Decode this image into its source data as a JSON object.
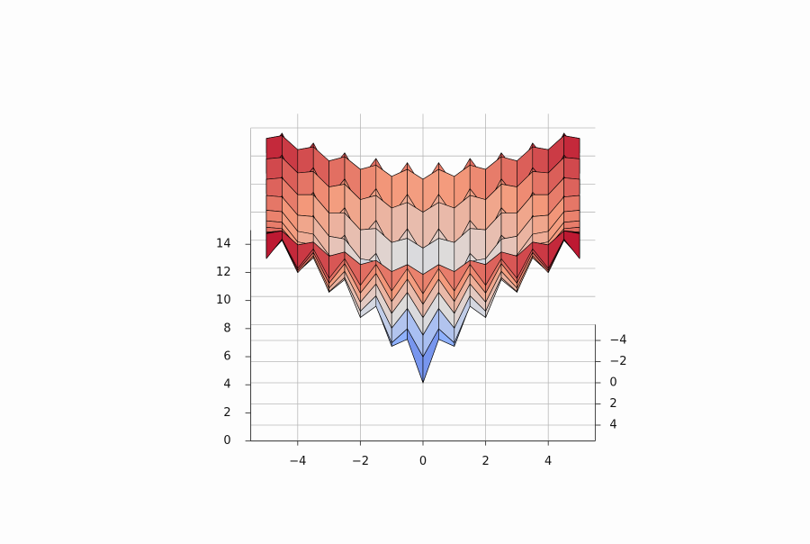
{
  "chart_data": {
    "type": "surface3d",
    "x": [
      -5,
      -4.5,
      -4,
      -3.5,
      -3,
      -2.5,
      -2,
      -1.5,
      -1,
      -0.5,
      0,
      0.5,
      1,
      1.5,
      2,
      2.5,
      3,
      3.5,
      4,
      4.5,
      5
    ],
    "y": [
      -5,
      -4.5,
      -4,
      -3.5,
      -3,
      -2.5,
      -2,
      -1.5,
      -1,
      -0.5,
      0,
      0.5,
      1,
      1.5,
      2,
      2.5,
      3,
      3.5,
      4,
      4.5,
      5
    ],
    "z": [
      [
        12.6,
        14.0,
        11.9,
        13.3,
        11.2,
        12.6,
        10.7,
        12.2,
        10.3,
        11.9,
        10.1,
        11.9,
        10.3,
        12.2,
        10.7,
        12.6,
        11.2,
        13.3,
        11.9,
        14.0,
        12.6
      ],
      [
        14.0,
        14.2,
        13.2,
        13.4,
        12.4,
        12.7,
        11.8,
        12.1,
        11.3,
        11.8,
        11.1,
        11.8,
        11.3,
        12.1,
        11.8,
        12.7,
        12.4,
        13.4,
        13.2,
        14.2,
        14.0
      ],
      [
        11.9,
        13.2,
        11.0,
        12.3,
        10.1,
        11.5,
        9.4,
        10.8,
        8.8,
        10.4,
        8.6,
        10.4,
        8.8,
        10.8,
        9.4,
        11.5,
        10.1,
        12.3,
        11.0,
        13.2,
        11.9
      ],
      [
        13.3,
        13.4,
        12.3,
        12.4,
        11.3,
        11.5,
        10.4,
        10.7,
        9.8,
        10.2,
        9.5,
        10.2,
        9.8,
        10.7,
        10.4,
        11.5,
        11.3,
        12.4,
        12.3,
        13.4,
        13.3
      ],
      [
        11.2,
        12.4,
        10.1,
        11.3,
        9.0,
        10.2,
        8.0,
        9.3,
        7.2,
        8.7,
        6.9,
        8.7,
        7.2,
        9.3,
        8.0,
        10.2,
        9.0,
        11.3,
        10.1,
        12.4,
        11.2
      ],
      [
        12.6,
        12.7,
        11.5,
        11.5,
        10.2,
        10.2,
        9.0,
        9.1,
        8.1,
        8.4,
        7.7,
        8.4,
        8.1,
        9.1,
        9.0,
        10.2,
        10.2,
        11.5,
        11.5,
        12.7,
        12.6
      ],
      [
        10.7,
        11.8,
        9.4,
        10.4,
        8.0,
        9.0,
        6.6,
        7.7,
        5.4,
        6.8,
        4.9,
        6.8,
        5.4,
        7.7,
        6.6,
        9.0,
        8.0,
        10.4,
        9.4,
        11.8,
        10.7
      ],
      [
        12.2,
        12.1,
        10.8,
        10.7,
        9.3,
        9.1,
        7.7,
        7.5,
        6.2,
        6.4,
        5.5,
        6.4,
        6.2,
        7.5,
        7.7,
        9.1,
        9.3,
        10.7,
        10.8,
        12.1,
        12.2
      ],
      [
        10.3,
        11.3,
        8.8,
        9.8,
        7.2,
        8.1,
        5.4,
        6.2,
        3.6,
        4.6,
        2.6,
        4.6,
        3.6,
        6.2,
        5.4,
        8.1,
        7.2,
        9.8,
        8.8,
        11.3,
        10.3
      ],
      [
        11.9,
        11.8,
        10.4,
        10.2,
        8.7,
        8.4,
        6.8,
        6.4,
        4.6,
        4.3,
        3.1,
        4.3,
        4.6,
        6.4,
        6.8,
        8.4,
        8.7,
        10.2,
        10.4,
        11.8,
        11.9
      ],
      [
        10.1,
        11.1,
        8.6,
        9.5,
        6.9,
        7.7,
        4.9,
        5.5,
        2.6,
        3.1,
        0.0,
        3.1,
        2.6,
        5.5,
        4.9,
        7.7,
        6.9,
        9.5,
        8.6,
        11.1,
        10.1
      ],
      [
        11.9,
        11.8,
        10.4,
        10.2,
        8.7,
        8.4,
        6.8,
        6.4,
        4.6,
        4.3,
        3.1,
        4.3,
        4.6,
        6.4,
        6.8,
        8.4,
        8.7,
        10.2,
        10.4,
        11.8,
        11.9
      ],
      [
        10.3,
        11.3,
        8.8,
        9.8,
        7.2,
        8.1,
        5.4,
        6.2,
        3.6,
        4.6,
        2.6,
        4.6,
        3.6,
        6.2,
        5.4,
        8.1,
        7.2,
        9.8,
        8.8,
        11.3,
        10.3
      ],
      [
        12.2,
        12.1,
        10.8,
        10.7,
        9.3,
        9.1,
        7.7,
        7.5,
        6.2,
        6.4,
        5.5,
        6.4,
        6.2,
        7.5,
        7.7,
        9.1,
        9.3,
        10.7,
        10.8,
        12.1,
        12.2
      ],
      [
        10.7,
        11.8,
        9.4,
        10.4,
        8.0,
        9.0,
        6.6,
        7.7,
        5.4,
        6.8,
        4.9,
        6.8,
        5.4,
        7.7,
        6.6,
        9.0,
        8.0,
        10.4,
        9.4,
        11.8,
        10.7
      ],
      [
        12.6,
        12.7,
        11.5,
        11.5,
        10.2,
        10.2,
        9.0,
        9.1,
        8.1,
        8.4,
        7.7,
        8.4,
        8.1,
        9.1,
        9.0,
        10.2,
        10.2,
        11.5,
        11.5,
        12.7,
        12.6
      ],
      [
        11.2,
        12.4,
        10.1,
        11.3,
        9.0,
        10.2,
        8.0,
        9.3,
        7.2,
        8.7,
        6.9,
        8.7,
        7.2,
        9.3,
        8.0,
        10.2,
        9.0,
        11.3,
        10.1,
        12.4,
        11.2
      ],
      [
        13.3,
        13.4,
        12.3,
        12.4,
        11.3,
        11.5,
        10.4,
        10.7,
        9.8,
        10.2,
        9.5,
        10.2,
        9.8,
        10.7,
        10.4,
        11.5,
        11.3,
        12.4,
        12.3,
        13.4,
        13.3
      ],
      [
        11.9,
        13.2,
        11.0,
        12.3,
        10.1,
        11.5,
        9.4,
        10.8,
        8.8,
        10.4,
        8.6,
        10.4,
        8.8,
        10.8,
        9.4,
        11.5,
        10.1,
        12.3,
        11.0,
        13.2,
        11.9
      ],
      [
        14.0,
        14.2,
        13.2,
        13.4,
        12.4,
        12.7,
        11.8,
        12.1,
        11.3,
        11.8,
        11.1,
        11.8,
        11.3,
        12.1,
        11.8,
        12.7,
        12.4,
        13.4,
        13.2,
        14.2,
        14.0
      ],
      [
        12.6,
        14.0,
        11.9,
        13.3,
        11.2,
        12.6,
        10.7,
        12.2,
        10.3,
        11.9,
        10.1,
        11.9,
        10.3,
        12.2,
        10.7,
        12.6,
        11.2,
        13.3,
        11.9,
        14.0,
        12.6
      ]
    ],
    "xlim": [
      -5.5,
      5.5
    ],
    "ylim": [
      -5.5,
      5.5
    ],
    "zlim": [
      0,
      15
    ],
    "xticks": [
      {
        "value": -4,
        "label": "−4"
      },
      {
        "value": -2,
        "label": "−2"
      },
      0,
      2,
      4
    ],
    "yticks": [
      {
        "value": -4,
        "label": "−4"
      },
      {
        "value": -2,
        "label": "−2"
      },
      0,
      2,
      4
    ],
    "zticks": [
      0,
      2,
      4,
      6,
      8,
      10,
      12,
      14
    ],
    "grid": true,
    "colormap": [
      "#3b4cc0",
      "#8db0fe",
      "#dddcdc",
      "#f49a7b",
      "#b40426"
    ],
    "edgecolor": "#000000"
  }
}
